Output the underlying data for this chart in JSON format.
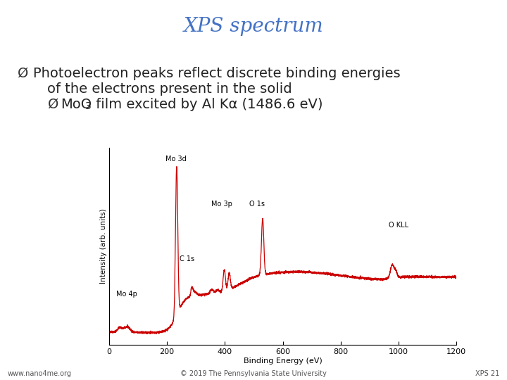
{
  "title": "XPS spectrum",
  "title_color": "#4472C4",
  "title_fontsize": 20,
  "title_style": "italic",
  "bg_color": "#FFFFFF",
  "bullet1_arrow": "Ø",
  "bullet1_line1": "Photoelectron peaks reflect discrete binding energies",
  "bullet1_line2": "of the electrons present in the solid",
  "bullet2_arrow": "Ø",
  "bullet2_text1": "MoO",
  "bullet2_sub": "3",
  "bullet2_text2": " film excited by Al Kα (1486.6 eV)",
  "bullet_fontsize": 14,
  "sub_bullet_fontsize": 14,
  "footer_left": "www.nano4me.org",
  "footer_center": "© 2019 The Pennsylvania State University",
  "footer_right": "XPS 21",
  "footer_fontsize": 7,
  "plot_xlabel": "Binding Energy (eV)",
  "plot_ylabel": "Intensity (arb. units)",
  "plot_xlim": [
    0,
    1200
  ],
  "line_color": "#CC0000",
  "annot_fontsize": 7
}
